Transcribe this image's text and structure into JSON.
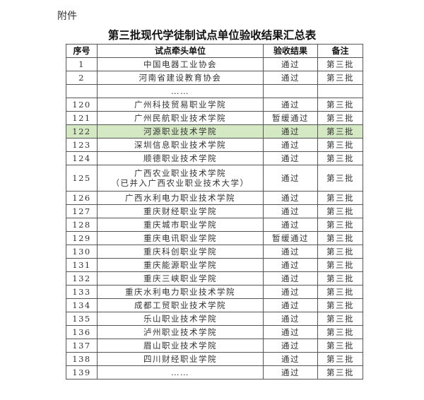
{
  "attachment_label": "附件",
  "title": "第三批现代学徒制试点单位验收结果汇总表",
  "headers": [
    "序号",
    "试点牵头单位",
    "验收结果",
    "备注"
  ],
  "highlight_color": "#d5e8c4",
  "rows": [
    {
      "no": "1",
      "unit": "中国电器工业协会",
      "result": "通过",
      "note": "第三批"
    },
    {
      "no": "2",
      "unit": "河南省建设教育协会",
      "result": "通过",
      "note": "第三批"
    },
    {
      "no": "",
      "unit": "……",
      "result": "",
      "note": ""
    },
    {
      "no": "120",
      "unit": "广州科技贸易职业学院",
      "result": "通过",
      "note": "第三批"
    },
    {
      "no": "121",
      "unit": "广州民航职业技术学院",
      "result": "暂缓通过",
      "note": "第三批"
    },
    {
      "no": "122",
      "unit": "河源职业技术学院",
      "result": "通过",
      "note": "第三批",
      "highlighted": true
    },
    {
      "no": "123",
      "unit": "深圳信息职业技术学院",
      "result": "通过",
      "note": "第三批"
    },
    {
      "no": "124",
      "unit": "顺德职业技术学院",
      "result": "通过",
      "note": "第三批"
    },
    {
      "no": "125",
      "unit": "广西农业职业技术学院",
      "unit_line2": "（已并入广西农业职业技术大学）",
      "result": "通过",
      "note": "第三批"
    },
    {
      "no": "126",
      "unit": "广西水利电力职业技术学院",
      "result": "通过",
      "note": "第三批"
    },
    {
      "no": "127",
      "unit": "重庆财经职业学院",
      "result": "通过",
      "note": "第三批"
    },
    {
      "no": "128",
      "unit": "重庆城市职业学院",
      "result": "通过",
      "note": "第三批"
    },
    {
      "no": "129",
      "unit": "重庆电讯职业学院",
      "result": "暂缓通过",
      "note": "第三批"
    },
    {
      "no": "130",
      "unit": "重庆科创职业学院",
      "result": "通过",
      "note": "第三批"
    },
    {
      "no": "131",
      "unit": "重庆能源职业学院",
      "result": "通过",
      "note": "第三批"
    },
    {
      "no": "132",
      "unit": "重庆三峡职业学院",
      "result": "通过",
      "note": "第三批"
    },
    {
      "no": "133",
      "unit": "重庆水利电力职业技术学院",
      "result": "通过",
      "note": "第三批"
    },
    {
      "no": "134",
      "unit": "成都工贸职业技术学院",
      "result": "通过",
      "note": "第三批"
    },
    {
      "no": "135",
      "unit": "乐山职业技术学院",
      "result": "通过",
      "note": "第三批"
    },
    {
      "no": "136",
      "unit": "泸州职业技术学院",
      "result": "通过",
      "note": "第三批"
    },
    {
      "no": "137",
      "unit": "眉山职业技术学院",
      "result": "通过",
      "note": "第三批"
    },
    {
      "no": "138",
      "unit": "四川财经职业学院",
      "result": "通过",
      "note": "第三批"
    },
    {
      "no": "139",
      "unit": "……",
      "result": "通过",
      "note": "第三批"
    }
  ]
}
